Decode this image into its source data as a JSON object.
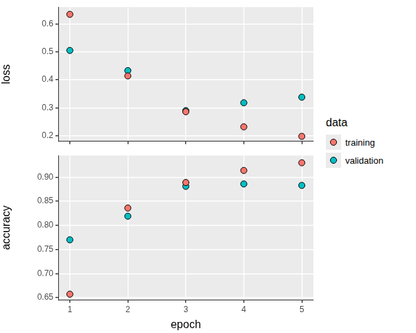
{
  "chart_data": [
    {
      "type": "scatter",
      "y_label": "loss",
      "x": [
        1,
        2,
        3,
        4,
        5
      ],
      "series": [
        {
          "name": "training",
          "color": "#F8766D",
          "values": [
            0.634,
            0.414,
            0.286,
            0.232,
            0.198
          ]
        },
        {
          "name": "validation",
          "color": "#00BFC4",
          "values": [
            0.505,
            0.433,
            0.29,
            0.318,
            0.338
          ]
        }
      ],
      "xlim": [
        0.8,
        5.2
      ],
      "xticks": [
        1,
        2,
        3,
        4,
        5
      ],
      "ylim": [
        0.18,
        0.66
      ],
      "yticks": [
        0.2,
        0.3,
        0.4,
        0.5,
        0.6
      ],
      "grid": true,
      "tick_labels": "y",
      "marker": "circle",
      "legend": "right",
      "legend_title": "data"
    },
    {
      "type": "scatter",
      "x_label": "epoch",
      "y_label": "accuracy",
      "x": [
        1,
        2,
        3,
        4,
        5
      ],
      "series": [
        {
          "name": "training",
          "color": "#F8766D",
          "values": [
            0.657,
            0.836,
            0.889,
            0.914,
            0.93
          ]
        },
        {
          "name": "validation",
          "color": "#00BFC4",
          "values": [
            0.77,
            0.819,
            0.881,
            0.886,
            0.883
          ]
        }
      ],
      "xlim": [
        0.8,
        5.2
      ],
      "xticks": [
        1,
        2,
        3,
        4,
        5
      ],
      "ylim": [
        0.645,
        0.945
      ],
      "yticks": [
        0.65,
        {
          "value": 0.7,
          "label": "0.70"
        },
        0.75,
        {
          "value": 0.8,
          "label": "0.80"
        },
        0.85,
        {
          "value": 0.9,
          "label": "0.90"
        }
      ],
      "grid": true,
      "marker": "circle"
    }
  ]
}
